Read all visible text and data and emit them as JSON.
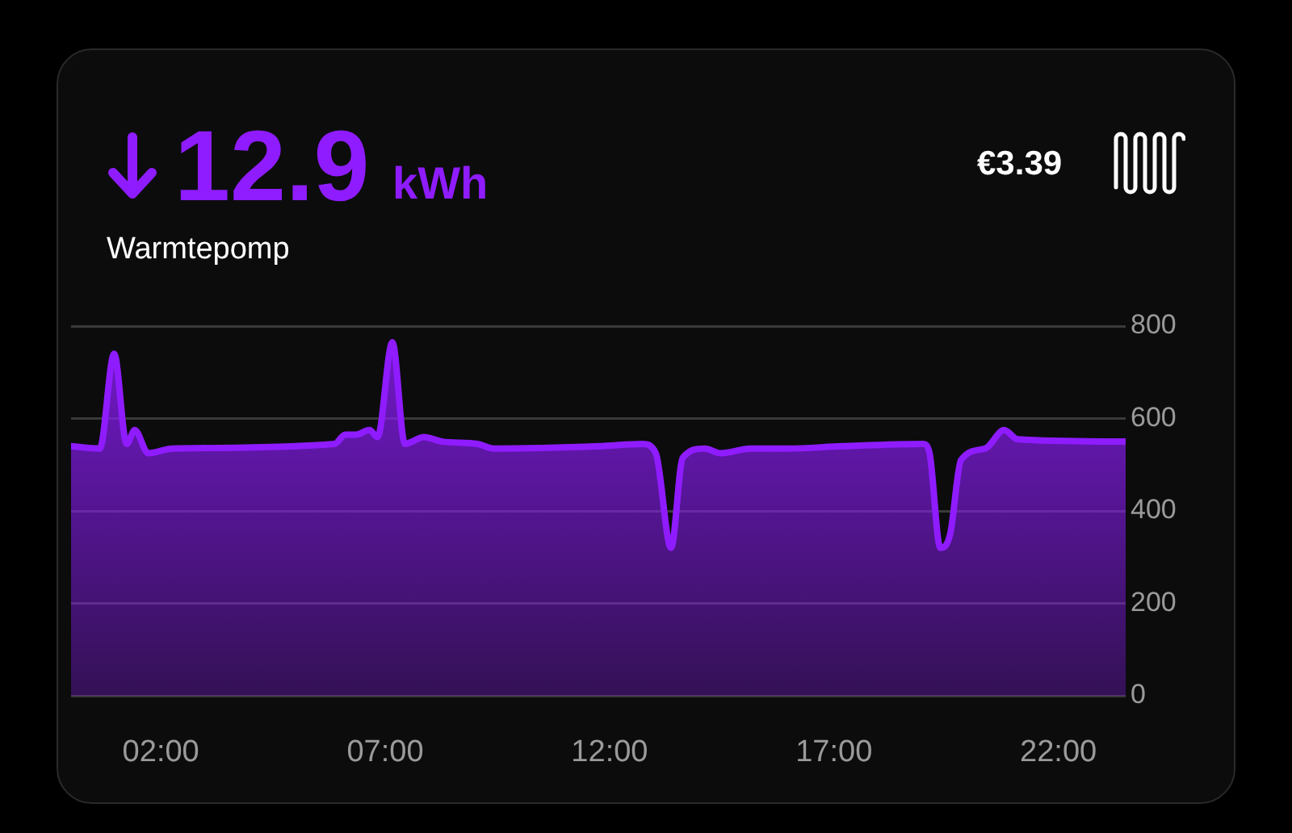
{
  "chart_data": {
    "type": "area",
    "title": "12.9",
    "subtitle": "Warmtepomp",
    "annotations": [
      "kWh",
      "€3.39"
    ],
    "x": [
      0,
      0.64,
      0.96,
      1.24,
      1.42,
      1.72,
      2.26,
      5.87,
      6.11,
      6.35,
      6.65,
      6.83,
      7.16,
      7.44,
      7.86,
      8.28,
      9.06,
      9.42,
      11.77,
      12.73,
      13.03,
      13.37,
      13.63,
      14.12,
      14.48,
      15.14,
      15.98,
      17.18,
      18.99,
      19.13,
      19.37,
      19.59,
      19.83,
      20.37,
      20.79,
      21.1,
      23.5
    ],
    "series": [
      {
        "color": "#8f1cff",
        "values": [
          540,
          535,
          740,
          545,
          575,
          525,
          535,
          545,
          565,
          565,
          575,
          560,
          765,
          545,
          560,
          550,
          545,
          535,
          540,
          545,
          525,
          320,
          515,
          535,
          525,
          535,
          535,
          540,
          545,
          525,
          320,
          350,
          510,
          535,
          575,
          555,
          550
        ]
      }
    ],
    "xlim": [
      0,
      23.5
    ],
    "xticks": [
      {
        "value": 2,
        "label": "02:00"
      },
      {
        "value": 7,
        "label": "07:00"
      },
      {
        "value": 12,
        "label": "12:00"
      },
      {
        "value": 17,
        "label": "17:00"
      },
      {
        "value": 22,
        "label": "22:00"
      }
    ],
    "ylim": [
      0,
      800
    ],
    "yticks": [
      0,
      200,
      400,
      600,
      800
    ],
    "grid": "y",
    "legend": false,
    "marker": "none",
    "line_style": "solid"
  }
}
